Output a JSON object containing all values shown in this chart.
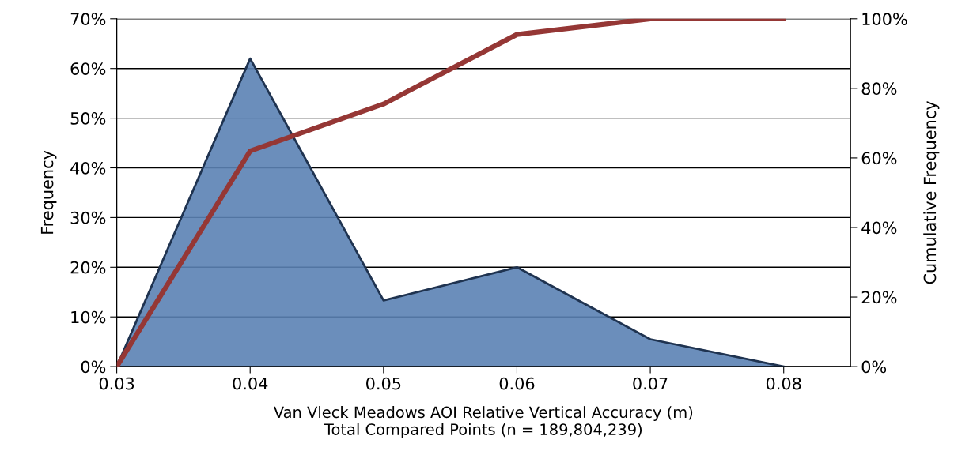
{
  "chart_data": {
    "type": "area",
    "xlabel": "Van Vleck Meadows AOI Relative Vertical Accuracy (m)\nTotal Compared Points (n = 189,804,239)",
    "ylabel": "Frequency",
    "y2label": "Cumulative Frequency",
    "x": [
      0.03,
      0.04,
      0.05,
      0.06,
      0.07,
      0.08
    ],
    "xlim": [
      0.03,
      0.085
    ],
    "xticks": [
      0.03,
      0.04,
      0.05,
      0.06,
      0.07,
      0.08
    ],
    "ylim": [
      0,
      70
    ],
    "yticks": [
      {
        "value": 0,
        "label": "0%"
      },
      {
        "value": 10,
        "label": "10%"
      },
      {
        "value": 20,
        "label": "20%"
      },
      {
        "value": 30,
        "label": "30%"
      },
      {
        "value": 40,
        "label": "40%"
      },
      {
        "value": 50,
        "label": "50%"
      },
      {
        "value": 60,
        "label": "60%"
      },
      {
        "value": 70,
        "label": "70%"
      }
    ],
    "y2lim": [
      0,
      100
    ],
    "y2ticks": [
      {
        "value": 0,
        "label": "0%"
      },
      {
        "value": 20,
        "label": "20%"
      },
      {
        "value": 40,
        "label": "40%"
      },
      {
        "value": 60,
        "label": "60%"
      },
      {
        "value": 80,
        "label": "80%"
      },
      {
        "value": 100,
        "label": "100%"
      }
    ],
    "grid": "y",
    "legend": false,
    "series": [
      {
        "color": "#5b82b4",
        "values": [
          0,
          62,
          13.3,
          20,
          5.5,
          0
        ]
      },
      {
        "type": "line",
        "axis": "y2",
        "color": "#953735",
        "values": [
          0,
          62,
          75.5,
          95.5,
          100,
          100
        ]
      }
    ]
  }
}
